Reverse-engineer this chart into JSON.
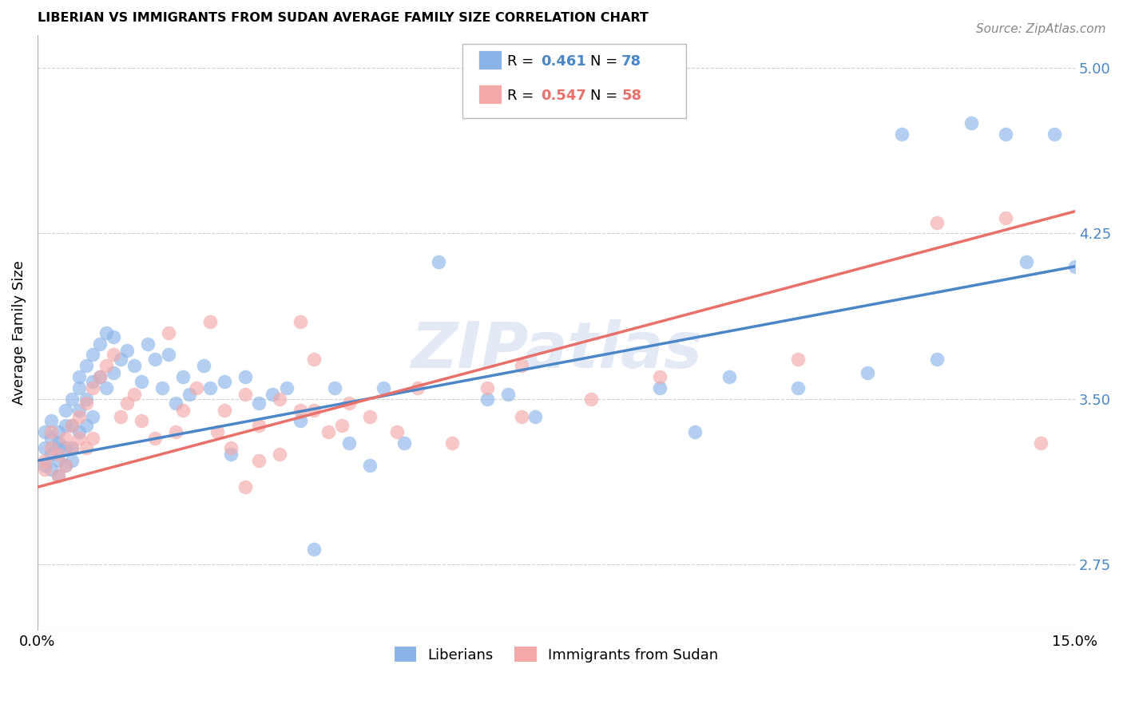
{
  "title": "LIBERIAN VS IMMIGRANTS FROM SUDAN AVERAGE FAMILY SIZE CORRELATION CHART",
  "source": "Source: ZipAtlas.com",
  "ylabel": "Average Family Size",
  "xlim": [
    0.0,
    0.15
  ],
  "ylim": [
    2.45,
    5.15
  ],
  "yticks": [
    2.75,
    3.5,
    4.25,
    5.0
  ],
  "xticks": [
    0.0,
    0.15
  ],
  "xticklabels": [
    "0.0%",
    "15.0%"
  ],
  "watermark": "ZIPatlas",
  "blue_color": "#8ab4e8",
  "pink_color": "#f4a8a8",
  "blue_line_color": "#4a86c8",
  "pink_line_color": "#e8706a",
  "blue_R": 0.461,
  "blue_N": 78,
  "pink_R": 0.547,
  "pink_N": 58,
  "legend_label_blue": "Liberians",
  "legend_label_pink": "Immigrants from Sudan",
  "blue_points_x": [
    0.001,
    0.001,
    0.001,
    0.002,
    0.002,
    0.002,
    0.002,
    0.003,
    0.003,
    0.003,
    0.003,
    0.003,
    0.004,
    0.004,
    0.004,
    0.004,
    0.005,
    0.005,
    0.005,
    0.005,
    0.006,
    0.006,
    0.006,
    0.006,
    0.007,
    0.007,
    0.007,
    0.008,
    0.008,
    0.008,
    0.009,
    0.009,
    0.01,
    0.01,
    0.011,
    0.011,
    0.012,
    0.013,
    0.014,
    0.015,
    0.016,
    0.017,
    0.018,
    0.019,
    0.02,
    0.021,
    0.022,
    0.024,
    0.025,
    0.027,
    0.028,
    0.03,
    0.032,
    0.034,
    0.036,
    0.038,
    0.04,
    0.043,
    0.045,
    0.048,
    0.05,
    0.053,
    0.058,
    0.065,
    0.068,
    0.072,
    0.09,
    0.095,
    0.1,
    0.11,
    0.12,
    0.125,
    0.13,
    0.135,
    0.14,
    0.143,
    0.147,
    0.15
  ],
  "blue_points_y": [
    3.2,
    3.28,
    3.35,
    3.25,
    3.32,
    3.18,
    3.4,
    3.3,
    3.22,
    3.28,
    3.35,
    3.15,
    3.38,
    3.45,
    3.28,
    3.2,
    3.5,
    3.38,
    3.28,
    3.22,
    3.55,
    3.45,
    3.6,
    3.35,
    3.65,
    3.5,
    3.38,
    3.7,
    3.58,
    3.42,
    3.75,
    3.6,
    3.8,
    3.55,
    3.78,
    3.62,
    3.68,
    3.72,
    3.65,
    3.58,
    3.75,
    3.68,
    3.55,
    3.7,
    3.48,
    3.6,
    3.52,
    3.65,
    3.55,
    3.58,
    3.25,
    3.6,
    3.48,
    3.52,
    3.55,
    3.4,
    2.82,
    3.55,
    3.3,
    3.2,
    3.55,
    3.3,
    4.12,
    3.5,
    3.52,
    3.42,
    3.55,
    3.35,
    3.6,
    3.55,
    3.62,
    4.7,
    3.68,
    4.75,
    4.7,
    4.12,
    4.7,
    4.1
  ],
  "pink_points_x": [
    0.001,
    0.001,
    0.002,
    0.002,
    0.003,
    0.003,
    0.004,
    0.004,
    0.005,
    0.005,
    0.006,
    0.006,
    0.007,
    0.007,
    0.008,
    0.008,
    0.009,
    0.01,
    0.011,
    0.012,
    0.013,
    0.014,
    0.015,
    0.017,
    0.019,
    0.021,
    0.023,
    0.025,
    0.027,
    0.03,
    0.032,
    0.035,
    0.038,
    0.04,
    0.044,
    0.048,
    0.052,
    0.06,
    0.065,
    0.07,
    0.02,
    0.026,
    0.03,
    0.035,
    0.04,
    0.045,
    0.055,
    0.028,
    0.032,
    0.038,
    0.042,
    0.07,
    0.08,
    0.09,
    0.11,
    0.13,
    0.14,
    0.145
  ],
  "pink_points_y": [
    3.18,
    3.22,
    3.28,
    3.35,
    3.25,
    3.15,
    3.32,
    3.2,
    3.38,
    3.28,
    3.42,
    3.32,
    3.48,
    3.28,
    3.55,
    3.32,
    3.6,
    3.65,
    3.7,
    3.42,
    3.48,
    3.52,
    3.4,
    3.32,
    3.8,
    3.45,
    3.55,
    3.85,
    3.45,
    3.52,
    3.38,
    3.5,
    3.85,
    3.68,
    3.38,
    3.42,
    3.35,
    3.3,
    3.55,
    3.42,
    3.35,
    3.35,
    3.1,
    3.25,
    3.45,
    3.48,
    3.55,
    3.28,
    3.22,
    3.45,
    3.35,
    3.65,
    3.5,
    3.6,
    3.68,
    4.3,
    4.32,
    3.3
  ]
}
